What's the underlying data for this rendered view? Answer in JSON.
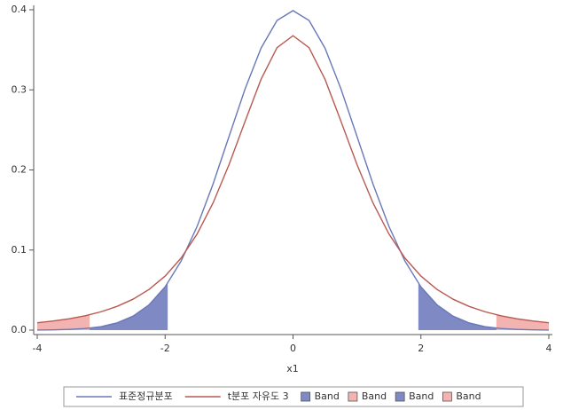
{
  "chart_data": {
    "type": "line",
    "x_label": "x1",
    "xlim": [
      -4,
      4
    ],
    "xticks": [
      -4,
      -2,
      0,
      2,
      4
    ],
    "ylim": [
      0,
      0.4
    ],
    "yticks": [
      {
        "value": 0,
        "label": "0.0"
      },
      0.1,
      0.2,
      0.3,
      0.4
    ],
    "x": [
      -4,
      -3.75,
      -3.5,
      -3.25,
      -3,
      -2.75,
      -2.5,
      -2.25,
      -2,
      -1.75,
      -1.5,
      -1.25,
      -1,
      -0.75,
      -0.5,
      -0.25,
      0,
      0.25,
      0.5,
      0.75,
      1,
      1.25,
      1.5,
      1.75,
      2,
      2.25,
      2.5,
      2.75,
      3,
      3.25,
      3.5,
      3.75,
      4
    ],
    "series": [
      {
        "name": "표준정규분포",
        "color": "#6a78b8",
        "values": [
          0.0001,
          0.0004,
          0.0009,
          0.002,
          0.0044,
          0.0091,
          0.0175,
          0.0317,
          0.054,
          0.0863,
          0.1295,
          0.1826,
          0.242,
          0.3011,
          0.3521,
          0.3867,
          0.3989,
          0.3867,
          0.3521,
          0.3011,
          0.242,
          0.1826,
          0.1295,
          0.0863,
          0.054,
          0.0317,
          0.0175,
          0.0091,
          0.0044,
          0.002,
          0.0009,
          0.0004,
          0.0001
        ]
      },
      {
        "name": "t분포 자유도 3",
        "color": "#b85a50",
        "values": [
          0.0092,
          0.0114,
          0.0142,
          0.018,
          0.023,
          0.0297,
          0.0387,
          0.0509,
          0.0675,
          0.09,
          0.12,
          0.1589,
          0.2068,
          0.2607,
          0.3132,
          0.3527,
          0.3676,
          0.3527,
          0.3132,
          0.2607,
          0.2068,
          0.1589,
          0.12,
          0.09,
          0.0675,
          0.0509,
          0.0387,
          0.0297,
          0.023,
          0.018,
          0.0142,
          0.0114,
          0.0092
        ]
      }
    ],
    "bands": [
      {
        "name": "Band",
        "color": "#7f89c4",
        "x": [
          -4,
          -3.75,
          -3.5,
          -3.25,
          -3,
          -2.75,
          -2.5,
          -2.25,
          -1.96
        ],
        "upper": [
          0.0001,
          0.0004,
          0.0009,
          0.002,
          0.0044,
          0.0091,
          0.0175,
          0.0317,
          0.0584
        ]
      },
      {
        "name": "Band",
        "color": "#f2b3b1",
        "x": [
          -4,
          -3.75,
          -3.5,
          -3.18
        ],
        "upper": [
          0.0092,
          0.0114,
          0.0142,
          0.0192
        ]
      },
      {
        "name": "Band",
        "color": "#7f89c4",
        "x": [
          1.96,
          2.25,
          2.5,
          2.75,
          3,
          3.25,
          3.5,
          3.75,
          4
        ],
        "upper": [
          0.0584,
          0.0317,
          0.0175,
          0.0091,
          0.0044,
          0.002,
          0.0009,
          0.0004,
          0.0001
        ]
      },
      {
        "name": "Band",
        "color": "#f2b3b1",
        "x": [
          3.18,
          3.5,
          3.75,
          4
        ],
        "upper": [
          0.0192,
          0.0142,
          0.0114,
          0.0092
        ]
      }
    ]
  }
}
